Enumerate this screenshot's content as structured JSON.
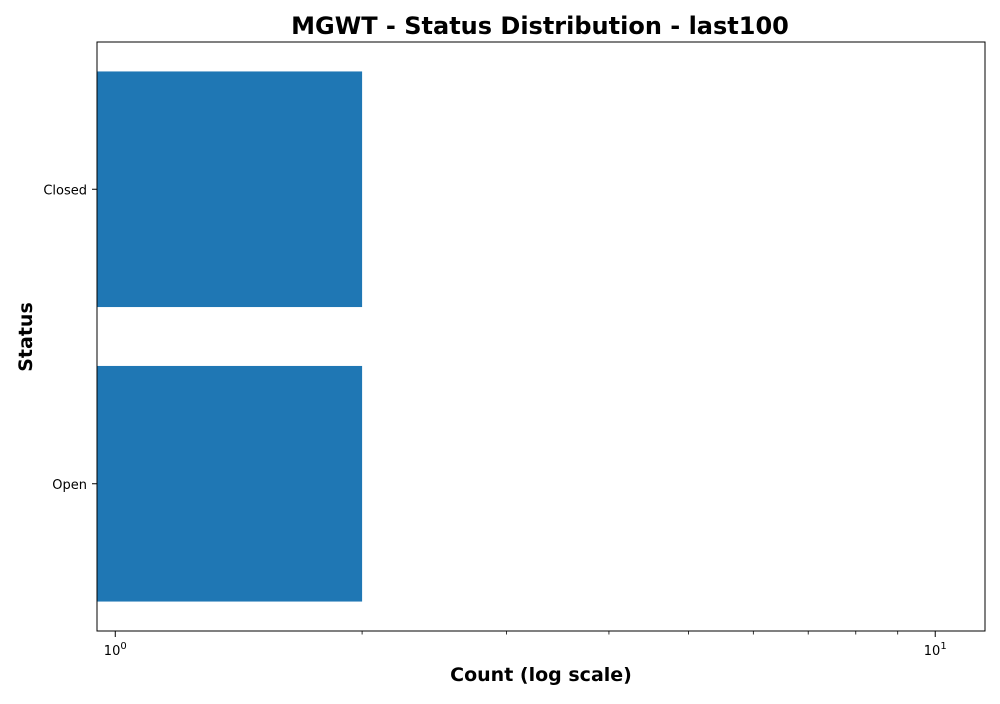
{
  "chart_data": {
    "type": "bar",
    "orientation": "horizontal",
    "title": "MGWT - Status Distribution - last100",
    "xlabel": "Count (log scale)",
    "ylabel": "Status",
    "categories": [
      "Closed",
      "Open"
    ],
    "values": [
      2,
      2
    ],
    "x_scale": "log",
    "xlim": [
      0.95,
      11.5
    ],
    "x_ticks": [
      {
        "value": 1,
        "base": "10",
        "exp": "0"
      },
      {
        "value": 10,
        "base": "10",
        "exp": "1"
      }
    ],
    "x_minor_ticks": [
      2,
      3,
      4,
      5,
      6,
      7,
      8,
      9
    ],
    "grid": false,
    "legend": "none",
    "bar_color": "#1f77b4"
  }
}
